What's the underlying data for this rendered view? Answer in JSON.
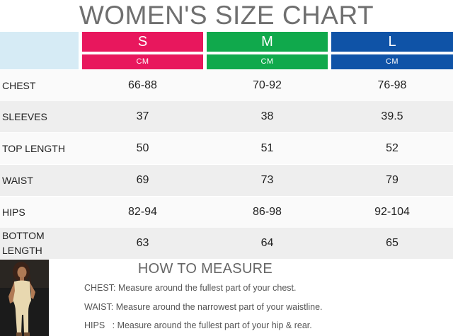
{
  "title": "WOMEN'S SIZE CHART",
  "sizes": [
    {
      "label": "S",
      "unit": "CM",
      "color": "#e8175d"
    },
    {
      "label": "M",
      "unit": "CM",
      "color": "#10a94c"
    },
    {
      "label": "L",
      "unit": "CM",
      "color": "#0f53a7"
    }
  ],
  "rows": [
    {
      "label": "CHEST",
      "values": [
        "66-88",
        "70-92",
        "76-98"
      ]
    },
    {
      "label": "SLEEVES",
      "values": [
        "37",
        "38",
        "39.5"
      ]
    },
    {
      "label": "TOP LENGTH",
      "values": [
        "50",
        "51",
        "52"
      ]
    },
    {
      "label": "WAIST",
      "values": [
        "69",
        "73",
        "79"
      ]
    },
    {
      "label": "HIPS",
      "values": [
        "82-94",
        "86-98",
        "92-104"
      ]
    },
    {
      "label": "BOTTOM LENGTH",
      "values": [
        "63",
        "64",
        "65"
      ]
    }
  ],
  "how_to_measure": {
    "title": "HOW TO MEASURE",
    "items": [
      {
        "key": "CHEST:",
        "text": "Measure around the fullest part of your chest."
      },
      {
        "key": "WAIST:",
        "text": "Measure around the narrowest part of your waistline."
      },
      {
        "key": "HIPS   :",
        "text": "Measure around the fullest part of your hip & rear."
      }
    ]
  }
}
